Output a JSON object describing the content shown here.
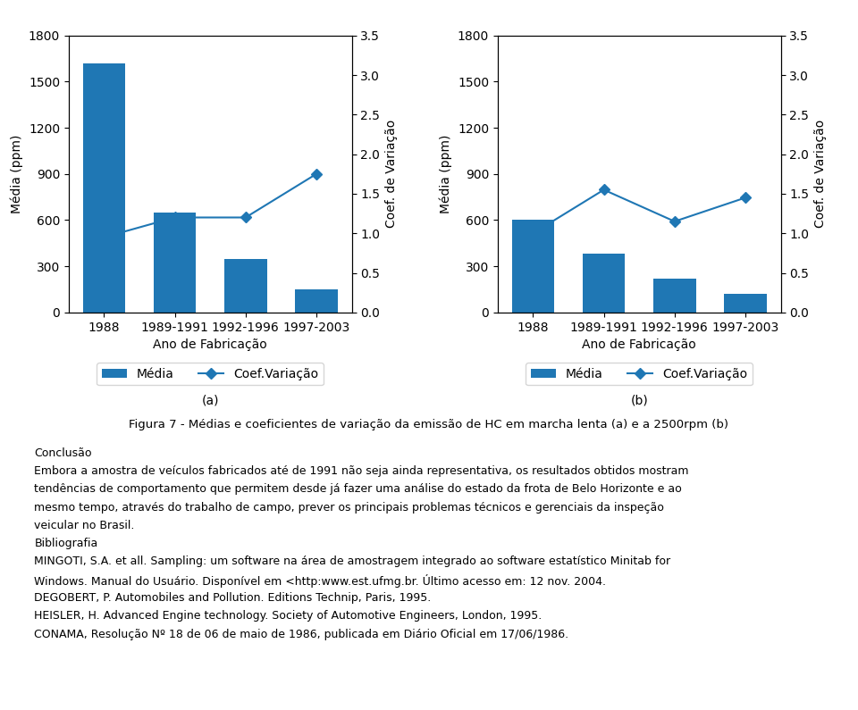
{
  "chart_data": [
    {
      "type": "bar",
      "categories": [
        "1988",
        "1989-1991",
        "1992-1996",
        "1997-2003"
      ],
      "series": [
        {
          "name": "Média",
          "type": "bar",
          "values": [
            1620,
            650,
            350,
            150
          ]
        },
        {
          "name": "Coef.Variação",
          "type": "line",
          "axis": "y2",
          "marker": "diamond",
          "values": [
            0.95,
            1.2,
            1.2,
            1.75
          ]
        }
      ],
      "xlabel": "Ano de Fabricação",
      "ylabel": "Média (ppm)",
      "y2label": "Coef. de Variação",
      "ylim": [
        0,
        1800
      ],
      "yticks": [
        0,
        300,
        600,
        900,
        1200,
        1500,
        1800
      ],
      "y2lim": [
        0.0,
        3.5
      ],
      "y2ticks": [
        0.0,
        0.5,
        1.0,
        1.5,
        2.0,
        2.5,
        3.0,
        3.5
      ],
      "legend": "upper center",
      "annotations": [
        "(a)"
      ]
    },
    {
      "type": "bar",
      "categories": [
        "1988",
        "1989-1991",
        "1992-1996",
        "1997-2003"
      ],
      "series": [
        {
          "name": "Média",
          "type": "bar",
          "values": [
            600,
            380,
            220,
            120
          ]
        },
        {
          "name": "Coef.Variação",
          "type": "line",
          "axis": "y2",
          "marker": "diamond",
          "values": [
            1.0,
            1.55,
            1.15,
            1.45
          ]
        }
      ],
      "xlabel": "Ano de Fabricação",
      "ylabel": "Média (ppm)",
      "y2label": "Coef. de Variação",
      "ylim": [
        0,
        1800
      ],
      "yticks": [
        0,
        300,
        600,
        900,
        1200,
        1500,
        1800
      ],
      "y2lim": [
        0.0,
        3.5
      ],
      "y2ticks": [
        0.0,
        0.5,
        1.0,
        1.5,
        2.0,
        2.5,
        3.0,
        3.5
      ],
      "legend": "upper center",
      "annotations": [
        "(b)"
      ]
    }
  ],
  "caption": "Figura 7 - Médias e coeficientes de variação da emissão de HC em marcha lenta (a) e a 2500rpm (b)",
  "annotations": [
    "Conclusão",
    "Embora a amostra de veículos fabricados até de 1991 não seja ainda representativa, os resultados obtidos mostram",
    "tendências de comportamento que permitem desde já fazer uma análise do estado da frota de Belo Horizonte e ao",
    "mesmo tempo, através do trabalho de campo, prever os principais problemas técnicos e gerenciais da inspeção",
    "veicular no Brasil.",
    "Bibliografia",
    "MINGOTI, S.A. et all. Sampling: um software na área de amostragem integrado ao software estatístico Minitab for",
    "Windows. Manual do Usuário. Disponível em <http:www.est.ufmg.br. Último acesso em: 12 nov. 2004.",
    "DEGOBERT, P. Automobiles and Pollution. Editions Technip, Paris, 1995.",
    "HEISLER, H. Advanced Engine technology. Society of Automotive Engineers, London, 1995.",
    "CONAMA, Resolução Nº 18 de 06 de maio de 1986, publicada em Diário Oficial em 17/06/1986."
  ]
}
